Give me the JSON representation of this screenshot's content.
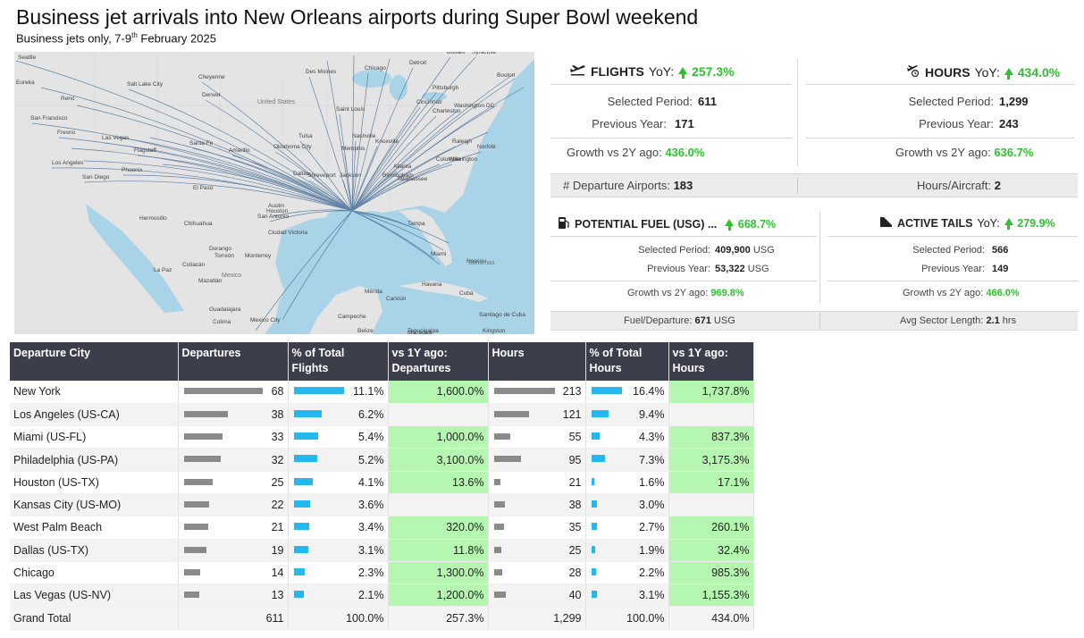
{
  "title": "Business jet arrivals into New Orleans airports during Super Bowl weekend",
  "subtitle": {
    "pre": "Business jets only, 7-9",
    "sup": "th",
    "post": " February 2025"
  },
  "map": {
    "cities": [
      "Seattle",
      "Eureka",
      "Reno",
      "San Francisco",
      "Fresno",
      "Los Angeles",
      "San Diego",
      "Las Vegas",
      "Phoenix",
      "Flagstaff",
      "Salt Lake City",
      "Cheyenne",
      "Denver",
      "Santa Fe",
      "Amarillo",
      "El Paso",
      "Chihuahua",
      "Hermosillo",
      "La Paz",
      "Culiacán",
      "Mazatlán",
      "Durango",
      "Torreón",
      "Monterrey",
      "Guadalajara",
      "Colima",
      "Mexico City",
      "San Antonio",
      "Austin",
      "Houston",
      "Ciudad Victoria",
      "Oklahoma City",
      "Tulsa",
      "Dallas",
      "Shreveport",
      "Jackson",
      "Memphis",
      "Nashville",
      "Knoxville",
      "Saint Louis",
      "Chicago",
      "Des Moines",
      "Detroit",
      "Cincinnati",
      "Pittsburgh",
      "Charleston",
      "Washington DC",
      "Buffalo",
      "Syracuse",
      "Boston",
      "Raleigh",
      "Norfolk",
      "Columbia",
      "Wilmington",
      "Atlanta",
      "Birmingham",
      "Tallahassee",
      "Tampa",
      "Miami",
      "Nassau",
      "Havana",
      "Cuba",
      "Mérida",
      "Campeche",
      "Cancún",
      "Belize",
      "Tegucigalpa",
      "Santiago de Cuba",
      "Kingston",
      "Managua"
    ],
    "country_labels": [
      "United States",
      "Mexico",
      "Bahamas"
    ]
  },
  "kpi": {
    "flights": {
      "label": "FLIGHTS",
      "yoy_label": "YoY:",
      "yoy": "257.3%",
      "selected_label": "Selected Period:",
      "selected": "611",
      "previous_label": "Previous Year:",
      "previous": "171",
      "growth_label": "Growth vs 2Y ago:",
      "growth": "436.0%"
    },
    "hours": {
      "label": "HOURS",
      "yoy_label": "YoY:",
      "yoy": "434.0%",
      "selected_label": "Selected Period:",
      "selected": "1,299",
      "previous_label": "Previous Year:",
      "previous": "243",
      "growth_label": "Growth vs 2Y ago:",
      "growth": "636.7%"
    },
    "departure_airports_label": "# Departure Airports:",
    "departure_airports": "183",
    "hours_per_aircraft_label": "Hours/Aircraft:",
    "hours_per_aircraft": "2",
    "fuel": {
      "label": "POTENTIAL FUEL (USG) ...",
      "yoy": "668.7%",
      "selected_label": "Selected Period:",
      "selected": "409,900",
      "previous_label": "Previous Year:",
      "previous": "53,322",
      "unit": "USG",
      "growth_label": "Growth vs 2Y ago:",
      "growth": "969.8%"
    },
    "tails": {
      "label": "ACTIVE TAILS",
      "yoy_label": "YoY:",
      "yoy": "279.9%",
      "selected_label": "Selected Period:",
      "selected": "566",
      "previous_label": "Previous Year:",
      "previous": "149",
      "growth_label": "Growth vs 2Y ago:",
      "growth": "466.0%"
    },
    "fuel_per_departure_label": "Fuel/Departure:",
    "fuel_per_departure": "671",
    "fuel_per_departure_unit": "USG",
    "avg_sector_label": "Avg Sector Length:",
    "avg_sector": "2.1",
    "avg_sector_unit": "hrs"
  },
  "table": {
    "headers": [
      "Departure City",
      "Departures",
      "% of Total Flights",
      "vs 1Y ago: Departures",
      "Hours",
      "% of Total Hours",
      "vs 1Y ago: Hours"
    ],
    "rows": [
      {
        "city": "New York",
        "departures": "68",
        "dep_pct": "11.1%",
        "dep_yoy": "1,600.0%",
        "hours": "213",
        "hrs_pct": "16.4%",
        "hrs_yoy": "1,737.8%",
        "d": 68,
        "dp": 11.1,
        "h": 213,
        "hp": 16.4
      },
      {
        "city": "Los Angeles (US-CA)",
        "departures": "38",
        "dep_pct": "6.2%",
        "dep_yoy": "",
        "hours": "121",
        "hrs_pct": "9.4%",
        "hrs_yoy": "",
        "d": 38,
        "dp": 6.2,
        "h": 121,
        "hp": 9.4
      },
      {
        "city": "Miami (US-FL)",
        "departures": "33",
        "dep_pct": "5.4%",
        "dep_yoy": "1,000.0%",
        "hours": "55",
        "hrs_pct": "4.3%",
        "hrs_yoy": "837.3%",
        "d": 33,
        "dp": 5.4,
        "h": 55,
        "hp": 4.3
      },
      {
        "city": "Philadelphia (US-PA)",
        "departures": "32",
        "dep_pct": "5.2%",
        "dep_yoy": "3,100.0%",
        "hours": "95",
        "hrs_pct": "7.3%",
        "hrs_yoy": "3,175.3%",
        "d": 32,
        "dp": 5.2,
        "h": 95,
        "hp": 7.3
      },
      {
        "city": "Houston (US-TX)",
        "departures": "25",
        "dep_pct": "4.1%",
        "dep_yoy": "13.6%",
        "hours": "21",
        "hrs_pct": "1.6%",
        "hrs_yoy": "17.1%",
        "d": 25,
        "dp": 4.1,
        "h": 21,
        "hp": 1.6
      },
      {
        "city": "Kansas City (US-MO)",
        "departures": "22",
        "dep_pct": "3.6%",
        "dep_yoy": "",
        "hours": "38",
        "hrs_pct": "3.0%",
        "hrs_yoy": "",
        "d": 22,
        "dp": 3.6,
        "h": 38,
        "hp": 3.0
      },
      {
        "city": "West Palm Beach",
        "departures": "21",
        "dep_pct": "3.4%",
        "dep_yoy": "320.0%",
        "hours": "35",
        "hrs_pct": "2.7%",
        "hrs_yoy": "260.1%",
        "d": 21,
        "dp": 3.4,
        "h": 35,
        "hp": 2.7
      },
      {
        "city": "Dallas (US-TX)",
        "departures": "19",
        "dep_pct": "3.1%",
        "dep_yoy": "11.8%",
        "hours": "25",
        "hrs_pct": "1.9%",
        "hrs_yoy": "32.4%",
        "d": 19,
        "dp": 3.1,
        "h": 25,
        "hp": 1.9
      },
      {
        "city": "Chicago",
        "departures": "14",
        "dep_pct": "2.3%",
        "dep_yoy": "1,300.0%",
        "hours": "28",
        "hrs_pct": "2.2%",
        "hrs_yoy": "985.3%",
        "d": 14,
        "dp": 2.3,
        "h": 28,
        "hp": 2.2
      },
      {
        "city": "Las Vegas (US-NV)",
        "departures": "13",
        "dep_pct": "2.1%",
        "dep_yoy": "1,200.0%",
        "hours": "40",
        "hrs_pct": "3.1%",
        "hrs_yoy": "1,155.3%",
        "d": 13,
        "dp": 2.1,
        "h": 40,
        "hp": 3.1
      }
    ],
    "total": {
      "label": "Grand Total",
      "departures": "611",
      "dep_pct": "100.0%",
      "dep_yoy": "257.3%",
      "hours": "1,299",
      "hrs_pct": "100.0%",
      "hrs_yoy": "434.0%"
    }
  },
  "colors": {
    "header_bg": "#3c3f4b",
    "positive_bg": "#b5f7b0",
    "dep_bar": "#8a8a8a",
    "pct_bar": "#25b8f0",
    "growth": "#2ec12e",
    "water": "#a9d3e6",
    "land": "#e4e4e4"
  }
}
